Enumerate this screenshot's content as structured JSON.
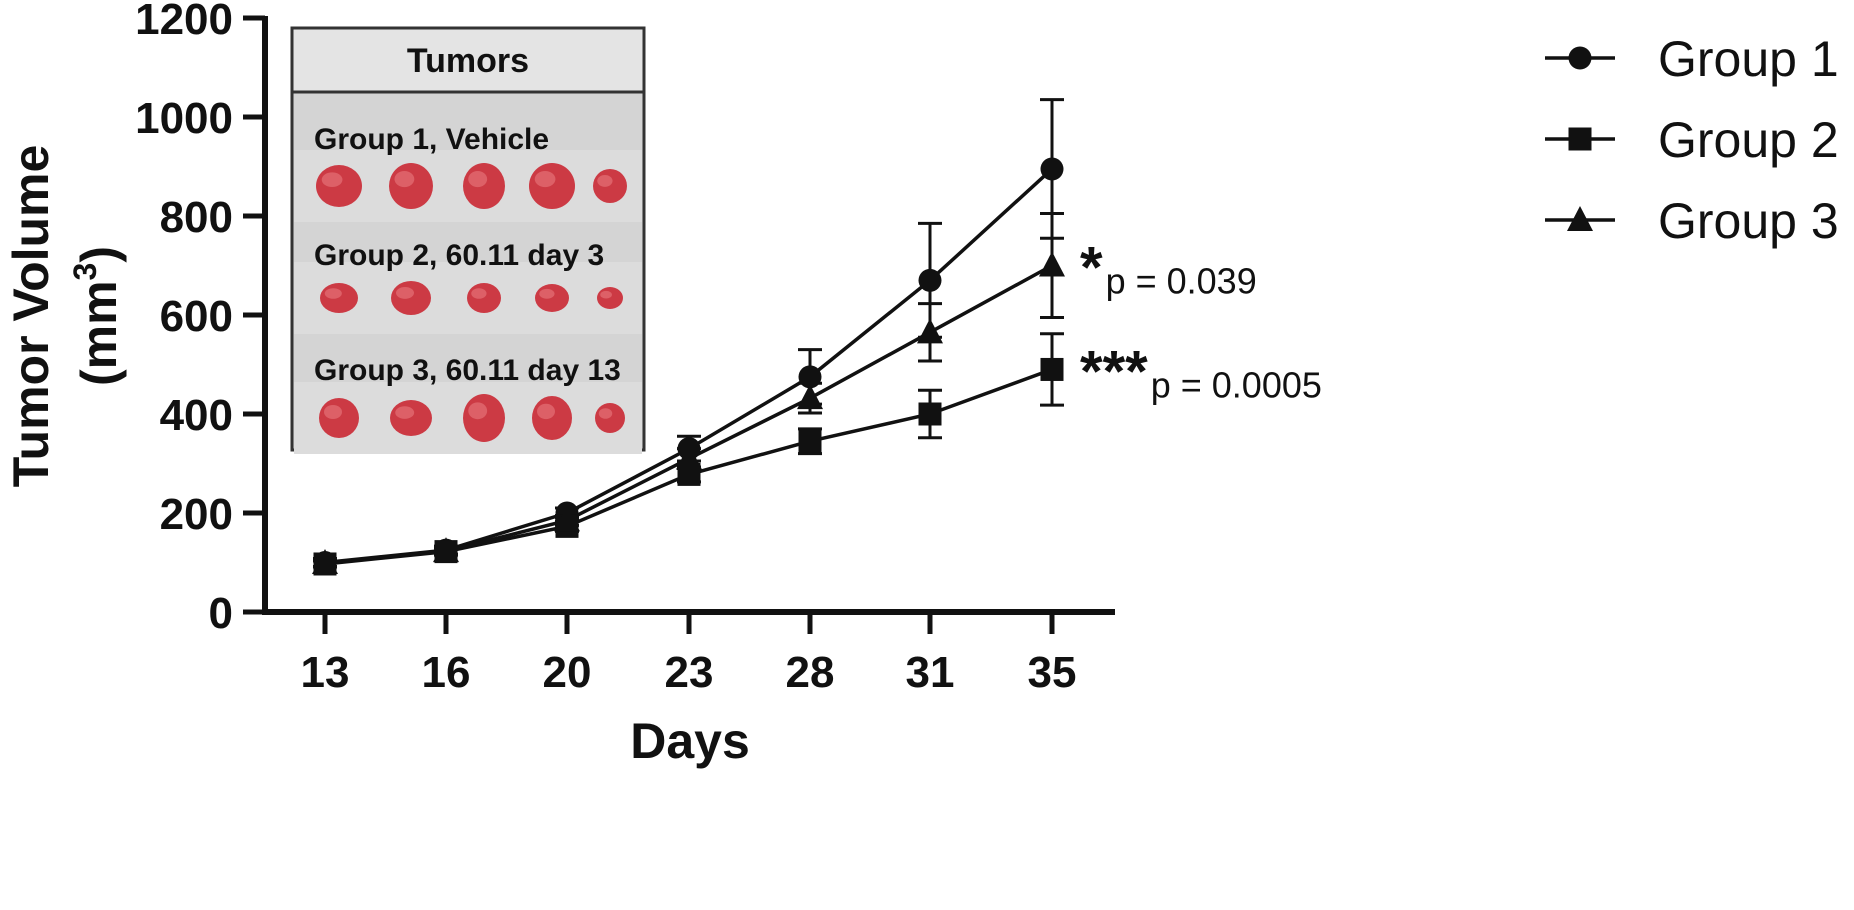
{
  "chart_data": {
    "type": "line",
    "xlabel": "Days",
    "ylabel_main": "Tumor Volume",
    "ylabel_unit_prefix": "(mm",
    "ylabel_unit_sup": "3",
    "ylabel_unit_suffix": ")",
    "x": [
      13,
      16,
      20,
      23,
      28,
      31,
      35
    ],
    "x_tick_labels": [
      "13",
      "16",
      "20",
      "23",
      "28",
      "31",
      "35"
    ],
    "ylim": [
      0,
      1200
    ],
    "y_ticks": [
      0,
      200,
      400,
      600,
      800,
      1000,
      1200
    ],
    "y_tick_labels": [
      "0",
      "200",
      "400",
      "600",
      "800",
      "1000",
      "1200"
    ],
    "grid": false,
    "legend_position": "top-right, outside plot",
    "series": [
      {
        "name": "Group 1",
        "marker": "circle",
        "values": [
          100,
          125,
          200,
          330,
          475,
          670,
          895
        ],
        "errors": [
          8,
          8,
          10,
          25,
          55,
          115,
          140
        ]
      },
      {
        "name": "Group 2",
        "marker": "square",
        "values": [
          97,
          122,
          173,
          278,
          345,
          400,
          490
        ],
        "errors": [
          6,
          7,
          10,
          15,
          25,
          48,
          72
        ]
      },
      {
        "name": "Group 3",
        "marker": "triangle",
        "values": [
          99,
          123,
          185,
          310,
          432,
          565,
          700
        ],
        "errors": [
          7,
          7,
          10,
          20,
          30,
          58,
          105
        ]
      }
    ],
    "annotations": [
      {
        "series": "Group 3",
        "stars": "*",
        "p_text": "p = 0.039"
      },
      {
        "series": "Group 2",
        "stars": "***",
        "p_text": "p = 0.0005"
      }
    ],
    "inset": {
      "title": "Tumors",
      "rows": [
        {
          "label": "Group 1, Vehicle",
          "tumor_count": 5
        },
        {
          "label": "Group 2, 60.11 day 3",
          "tumor_count": 5
        },
        {
          "label": "Group 3, 60.11 day 13",
          "tumor_count": 5
        }
      ]
    }
  },
  "colors": {
    "line": "#111111",
    "tumor": "#cc3a44",
    "tumor_highlight": "#e77a7e",
    "inset_bg": "#d4d4d4",
    "inset_header_bg": "#e4e4e4"
  }
}
